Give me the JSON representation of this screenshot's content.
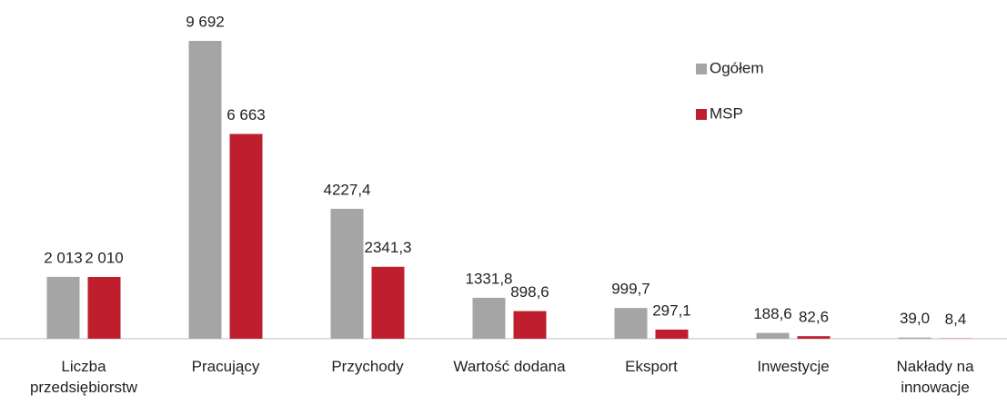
{
  "chart_data": {
    "type": "bar",
    "categories": [
      "Liczba przedsiębiorstw",
      "Pracujący",
      "Przychody",
      "Wartość dodana",
      "Eksport",
      "Inwestycje",
      "Nakłady na innowacje"
    ],
    "series": [
      {
        "name": "Ogółem",
        "color": "#a5a5a5",
        "values": [
          2013,
          9692,
          4227.4,
          1331.8,
          999.7,
          188.6,
          39.0
        ],
        "value_labels": [
          "2 013",
          "9 692",
          "4227,4",
          "1331,8",
          "999,7",
          "188,6",
          "39,0"
        ]
      },
      {
        "name": "MSP",
        "color": "#be1e2d",
        "values": [
          2010,
          6663,
          2341.3,
          898.6,
          297.1,
          82.6,
          8.4
        ],
        "value_labels": [
          "2 010",
          "6 663",
          "2341,3",
          "898,6",
          "297,1",
          "82,6",
          "8,4"
        ]
      }
    ],
    "legend": "top-right"
  }
}
